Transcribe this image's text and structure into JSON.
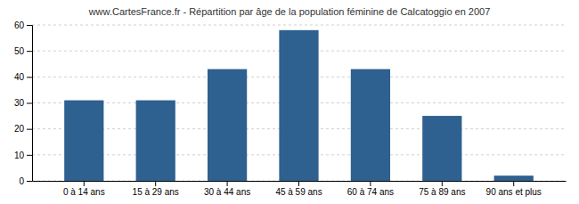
{
  "chart_data": {
    "type": "bar",
    "title": "www.CartesFrance.fr - Répartition par âge de la population féminine de Calcatoggio en 2007",
    "categories": [
      "0 à 14 ans",
      "15 à 29 ans",
      "30 à 44 ans",
      "45 à 59 ans",
      "60 à 74 ans",
      "75 à 89 ans",
      "90 ans et plus"
    ],
    "values": [
      31,
      31,
      43,
      58,
      43,
      25,
      2
    ],
    "color": "#2e6090",
    "ylim": [
      0,
      60
    ],
    "yticks": [
      0,
      10,
      20,
      30,
      40,
      50,
      60
    ],
    "grid": true
  }
}
